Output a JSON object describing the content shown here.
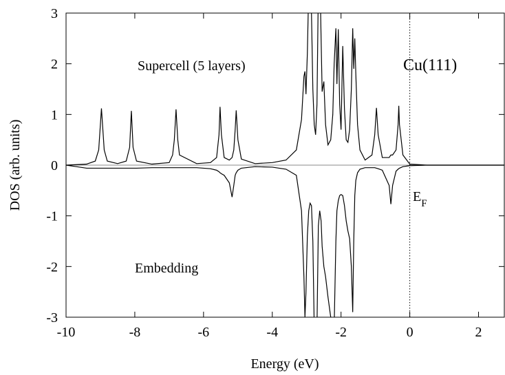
{
  "chart_data": {
    "type": "line",
    "xlabel": "Energy (eV)",
    "ylabel": "DOS (arb. units)",
    "annotations": {
      "supercell": "Supercell (5 layers)",
      "material": "Cu(111)",
      "embedding": "Embedding",
      "fermi": {
        "text": "E",
        "subscript": "F"
      }
    },
    "fermi_level": 0,
    "xlim": [
      -10,
      2.75
    ],
    "ylim": [
      -3,
      3
    ],
    "xticks": [
      -10,
      -8,
      -6,
      -4,
      -2,
      0,
      2
    ],
    "yticks": [
      -3,
      -2,
      -1,
      0,
      1,
      2,
      3
    ],
    "x": [
      -10,
      -9.7,
      -9.4,
      -9.15,
      -9.05,
      -8.97,
      -8.89,
      -8.8,
      -8.5,
      -8.25,
      -8.15,
      -8.1,
      -8.05,
      -7.95,
      -7.5,
      -7,
      -6.9,
      -6.85,
      -6.8,
      -6.75,
      -6.7,
      -6.2,
      -5.8,
      -5.62,
      -5.55,
      -5.52,
      -5.48,
      -5.4,
      -5.25,
      -5.17,
      -5.12,
      -5.08,
      -5.05,
      -5.0,
      -4.9,
      -4.5,
      -4,
      -3.6,
      -3.3,
      -3.15,
      -3.08,
      -3.05,
      -3.02,
      -2.98,
      -2.94,
      -2.9,
      -2.86,
      -2.82,
      -2.78,
      -2.74,
      -2.7,
      -2.66,
      -2.62,
      -2.58,
      -2.55,
      -2.5,
      -2.45,
      -2.38,
      -2.3,
      -2.24,
      -2.2,
      -2.15,
      -2.12,
      -2.08,
      -2.04,
      -2.0,
      -1.95,
      -1.9,
      -1.85,
      -1.8,
      -1.75,
      -1.7,
      -1.66,
      -1.63,
      -1.6,
      -1.57,
      -1.52,
      -1.45,
      -1.3,
      -1.1,
      -1.02,
      -0.97,
      -0.92,
      -0.8,
      -0.6,
      -0.55,
      -0.5,
      -0.4,
      -0.34,
      -0.32,
      -0.3,
      -0.2,
      0,
      0.5,
      1,
      2,
      2.75
    ],
    "series": [
      {
        "color": "#000000",
        "values": [
          0,
          0.01,
          0.02,
          0.08,
          0.3,
          1.12,
          0.3,
          0.08,
          0.03,
          0.08,
          0.35,
          1.07,
          0.35,
          0.08,
          0.02,
          0.05,
          0.2,
          0.5,
          1.1,
          0.5,
          0.2,
          0.03,
          0.05,
          0.15,
          0.6,
          1.15,
          0.6,
          0.15,
          0.1,
          0.15,
          0.3,
          0.7,
          1.08,
          0.5,
          0.12,
          0.03,
          0.05,
          0.1,
          0.3,
          0.9,
          1.75,
          1.85,
          1.4,
          2.2,
          3.5,
          4,
          3,
          1.5,
          0.8,
          0.6,
          1.2,
          3.5,
          4,
          2.5,
          1.45,
          1.65,
          0.8,
          0.4,
          0.5,
          1.0,
          2.0,
          2.7,
          1.6,
          2.68,
          1.2,
          0.7,
          2.35,
          1.1,
          0.5,
          0.45,
          0.7,
          1.5,
          2.7,
          1.9,
          2.5,
          1.8,
          0.8,
          0.3,
          0.1,
          0.2,
          0.6,
          1.13,
          0.6,
          0.15,
          0.15,
          0.2,
          0.2,
          0.3,
          0.8,
          1.17,
          0.8,
          0.2,
          0.02,
          0,
          0,
          0,
          0
        ]
      },
      {
        "color": "#000000",
        "values": [
          0,
          -0.03,
          -0.06,
          -0.06,
          -0.06,
          -0.06,
          -0.06,
          -0.06,
          -0.06,
          -0.06,
          -0.06,
          -0.06,
          -0.06,
          -0.06,
          -0.05,
          -0.05,
          -0.05,
          -0.05,
          -0.05,
          -0.05,
          -0.05,
          -0.05,
          -0.07,
          -0.1,
          -0.13,
          -0.15,
          -0.17,
          -0.2,
          -0.35,
          -0.63,
          -0.4,
          -0.2,
          -0.15,
          -0.1,
          -0.06,
          -0.03,
          -0.04,
          -0.08,
          -0.2,
          -0.9,
          -2.2,
          -3.0,
          -2.5,
          -1.4,
          -0.9,
          -0.75,
          -0.8,
          -1.5,
          -3.2,
          -3.5,
          -3.2,
          -1.2,
          -0.9,
          -1.1,
          -1.6,
          -2.0,
          -2.2,
          -2.6,
          -3.0,
          -3.5,
          -3.2,
          -1.5,
          -0.9,
          -0.7,
          -0.6,
          -0.58,
          -0.6,
          -0.8,
          -1.1,
          -1.3,
          -1.45,
          -2.0,
          -2.9,
          -1.5,
          -0.6,
          -0.3,
          -0.15,
          -0.08,
          -0.05,
          -0.05,
          -0.05,
          -0.06,
          -0.07,
          -0.1,
          -0.4,
          -0.77,
          -0.4,
          -0.12,
          -0.08,
          -0.07,
          -0.06,
          -0.03,
          -0.01,
          0,
          0,
          0,
          0
        ]
      }
    ]
  }
}
